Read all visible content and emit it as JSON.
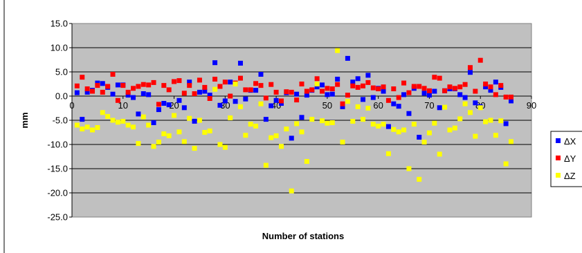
{
  "chart_data": {
    "type": "scatter",
    "title": "",
    "xlabel": "Number of stations",
    "ylabel": "mm",
    "xlim": [
      0,
      90
    ],
    "ylim": [
      -25,
      15
    ],
    "x_ticks": [
      0,
      10,
      20,
      30,
      40,
      50,
      60,
      70,
      80,
      90
    ],
    "y_ticks": [
      15,
      10,
      5,
      0,
      -5,
      -10,
      -15,
      -20,
      -25
    ],
    "x_tick_labels": [
      "0",
      "10",
      "20",
      "30",
      "40",
      "50",
      "60",
      "70",
      "80",
      "90"
    ],
    "y_tick_labels": [
      "15.0",
      "10.0",
      "5.0",
      "0.0",
      "-5.0",
      "-10.0",
      "-15.0",
      "-20.0",
      "-25.0"
    ],
    "grid": "horizontal",
    "plot_background": "#c0c0c0",
    "legend": "right",
    "series": [
      {
        "name": "ΔX",
        "color": "#0000ff",
        "x": [
          1,
          2,
          3,
          4,
          5,
          6,
          7,
          8,
          9,
          10,
          11,
          12,
          13,
          14,
          15,
          16,
          17,
          18,
          19,
          20,
          21,
          22,
          23,
          24,
          25,
          26,
          27,
          28,
          29,
          30,
          31,
          32,
          33,
          34,
          35,
          36,
          37,
          38,
          39,
          40,
          41,
          42,
          43,
          44,
          45,
          46,
          47,
          48,
          49,
          50,
          51,
          52,
          53,
          54,
          55,
          56,
          57,
          58,
          59,
          60,
          61,
          62,
          63,
          64,
          65,
          66,
          67,
          68,
          69,
          70,
          71,
          72,
          73,
          74,
          75,
          76,
          77,
          78,
          79,
          80,
          81,
          82,
          83,
          84,
          85,
          86
        ],
        "y": [
          0.7,
          -4.8,
          0.8,
          1.2,
          2.7,
          2.6,
          1.8,
          0.4,
          2.3,
          2.3,
          0.2,
          -0.3,
          -3.7,
          0.5,
          0.3,
          -5.5,
          -2.8,
          -1.5,
          -1.8,
          3.0,
          -0.9,
          -2.4,
          2.9,
          -5.2,
          0.8,
          1.0,
          0.2,
          6.9,
          -1.9,
          -1.0,
          2.9,
          -1.1,
          6.8,
          -0.6,
          1.2,
          1.2,
          4.5,
          -4.8,
          -2.0,
          -0.9,
          -1.5,
          0.7,
          -8.7,
          0.4,
          -4.4,
          0.2,
          1.2,
          1.9,
          2.3,
          0.3,
          0.4,
          3.5,
          -2.2,
          7.8,
          2.9,
          3.6,
          -0.7,
          4.3,
          -0.3,
          1.6,
          1.0,
          -6.3,
          -1.6,
          -2.1,
          0.3,
          -3.6,
          1.6,
          -8.5,
          0.6,
          0.2,
          1.0,
          -2.4,
          1.1,
          1.5,
          1.5,
          0.3,
          -0.3,
          4.9,
          -1.4,
          -2.2,
          1.9,
          1.2,
          2.9,
          1.8,
          -5.7,
          -1.0
        ]
      },
      {
        "name": "ΔY",
        "color": "#ff0000",
        "x": [
          1,
          2,
          3,
          4,
          5,
          6,
          7,
          8,
          9,
          10,
          11,
          12,
          13,
          14,
          15,
          16,
          17,
          18,
          19,
          20,
          21,
          22,
          23,
          24,
          25,
          26,
          27,
          28,
          29,
          30,
          31,
          32,
          33,
          34,
          35,
          36,
          37,
          38,
          39,
          40,
          41,
          42,
          43,
          44,
          45,
          46,
          47,
          48,
          49,
          50,
          51,
          52,
          53,
          54,
          55,
          56,
          57,
          58,
          59,
          60,
          61,
          62,
          63,
          64,
          65,
          66,
          67,
          68,
          69,
          70,
          71,
          72,
          73,
          74,
          75,
          76,
          77,
          78,
          79,
          80,
          81,
          82,
          83,
          84,
          85,
          86
        ],
        "y": [
          2.1,
          3.9,
          1.5,
          1.0,
          2.2,
          0.8,
          2.0,
          4.5,
          -0.9,
          2.2,
          0.8,
          1.6,
          2.0,
          2.4,
          2.3,
          2.8,
          -1.7,
          2.2,
          1.3,
          3.0,
          3.2,
          0.6,
          2.2,
          0.5,
          3.3,
          1.8,
          -0.5,
          3.5,
          2.0,
          2.9,
          0.0,
          2.7,
          3.7,
          1.3,
          1.3,
          2.6,
          2.2,
          -0.4,
          2.4,
          0.8,
          -1.0,
          0.9,
          0.8,
          -0.8,
          2.5,
          1.0,
          1.3,
          3.6,
          1.0,
          1.6,
          1.5,
          2.4,
          -1.6,
          0.2,
          2.1,
          1.8,
          2.1,
          2.8,
          1.7,
          1.5,
          1.9,
          -0.9,
          1.5,
          -0.3,
          2.7,
          0.7,
          2.0,
          2.0,
          1.6,
          1.1,
          3.9,
          3.7,
          1.1,
          1.9,
          1.6,
          1.9,
          2.4,
          5.9,
          1.0,
          7.4,
          2.5,
          1.9,
          0.3,
          2.2,
          -0.2,
          -0.2
        ]
      },
      {
        "name": "ΔZ",
        "color": "#ffff00",
        "x": [
          1,
          2,
          3,
          4,
          5,
          6,
          7,
          8,
          9,
          10,
          11,
          12,
          13,
          14,
          15,
          16,
          17,
          18,
          19,
          20,
          21,
          22,
          23,
          24,
          25,
          26,
          27,
          28,
          29,
          30,
          31,
          32,
          33,
          34,
          35,
          36,
          37,
          38,
          39,
          40,
          41,
          42,
          43,
          44,
          45,
          46,
          47,
          48,
          49,
          50,
          51,
          52,
          53,
          54,
          55,
          56,
          57,
          58,
          59,
          60,
          61,
          62,
          63,
          64,
          65,
          66,
          67,
          68,
          69,
          70,
          71,
          72,
          73,
          74,
          75,
          76,
          77,
          78,
          79,
          80,
          81,
          82,
          83,
          84,
          85,
          86
        ],
        "y": [
          -6.0,
          -6.8,
          -6.4,
          -7.0,
          -6.5,
          -3.4,
          -4.2,
          -5.0,
          -5.4,
          -5.2,
          -6.0,
          -6.4,
          -9.8,
          -4.3,
          -6.0,
          -10.4,
          -9.5,
          -7.8,
          -8.2,
          -4.0,
          -7.4,
          -9.4,
          -4.6,
          -10.8,
          -5.0,
          -7.5,
          -7.2,
          1.4,
          -10.0,
          -10.6,
          -4.5,
          2.5,
          -2.2,
          -8.1,
          -5.8,
          -6.2,
          -1.6,
          -14.3,
          -8.6,
          -8.2,
          -10.4,
          -6.8,
          -19.6,
          -5.7,
          -7.4,
          -13.5,
          -4.8,
          2.5,
          -5.1,
          -5.6,
          -5.5,
          9.4,
          -9.5,
          -1.1,
          -5.2,
          -2.2,
          -4.8,
          -2.5,
          -5.8,
          -6.2,
          -5.8,
          -11.9,
          -6.9,
          -7.4,
          -7.0,
          -15.0,
          -5.8,
          -17.2,
          -9.5,
          -7.6,
          -5.6,
          -12.0,
          -2.3,
          -7.0,
          -6.6,
          -4.7,
          -1.6,
          -3.4,
          -8.3,
          -2.4,
          -5.3,
          -5.0,
          -8.1,
          -5.1,
          -14.0,
          -9.4
        ]
      }
    ]
  }
}
